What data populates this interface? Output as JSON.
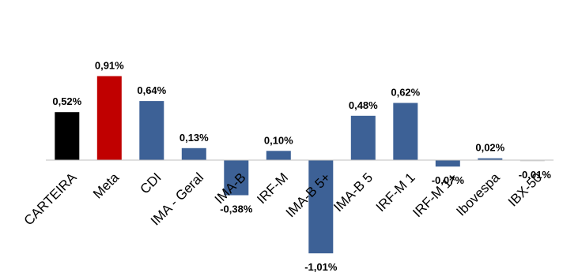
{
  "chart_data": {
    "type": "bar",
    "categories": [
      "CARTEIRA",
      "Meta",
      "CDI",
      "IMA - Geral",
      "IMA-B",
      "IRF-M",
      "IMA-B 5+",
      "IMA-B 5",
      "IRF-M 1",
      "IRF-M 1+",
      "Ibovespa",
      "IBX-50"
    ],
    "values": [
      0.52,
      0.91,
      0.64,
      0.13,
      -0.38,
      0.1,
      -1.01,
      0.48,
      0.62,
      -0.07,
      0.02,
      -0.01
    ],
    "data_labels": [
      "0,52%",
      "0,91%",
      "0,64%",
      "0,13%",
      "-0,38%",
      "0,10%",
      "-1,01%",
      "0,48%",
      "0,62%",
      "-0,07%",
      "0,02%",
      "-0,01%"
    ],
    "colors": [
      "#000000",
      "#c00000",
      "#3d6196",
      "#3d6196",
      "#3d6196",
      "#3d6196",
      "#3d6196",
      "#3d6196",
      "#3d6196",
      "#3d6196",
      "#3d6196",
      "#d9d9d9"
    ],
    "title": "",
    "xlabel": "",
    "ylabel": "",
    "ylim": [
      -1.05,
      0.95
    ],
    "grid": false,
    "legend": "none",
    "axis_color": "#bfbfbf"
  }
}
